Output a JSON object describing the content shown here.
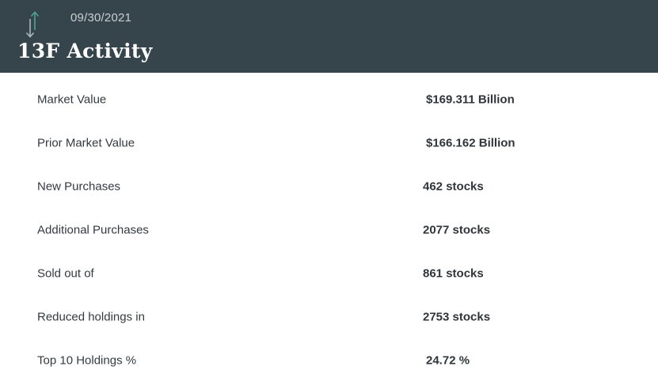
{
  "header": {
    "date": "09/30/2021",
    "title": "13F Activity",
    "icon": "up-down-arrows-icon",
    "colors": {
      "background": "#36454c",
      "arrow_up": "#4aa58e",
      "arrow_down": "#a7b8bc"
    }
  },
  "rows": [
    {
      "label": "Market Value",
      "value": "$169.311 Billion"
    },
    {
      "label": "Prior Market Value",
      "value": "$166.162 Billion"
    },
    {
      "label": "New Purchases",
      "value": "462 stocks"
    },
    {
      "label": "Additional Purchases",
      "value": "2077 stocks"
    },
    {
      "label": "Sold out of",
      "value": "861 stocks"
    },
    {
      "label": "Reduced holdings in",
      "value": "2753 stocks"
    },
    {
      "label": "Top 10 Holdings %",
      "value": "24.72 %"
    }
  ]
}
